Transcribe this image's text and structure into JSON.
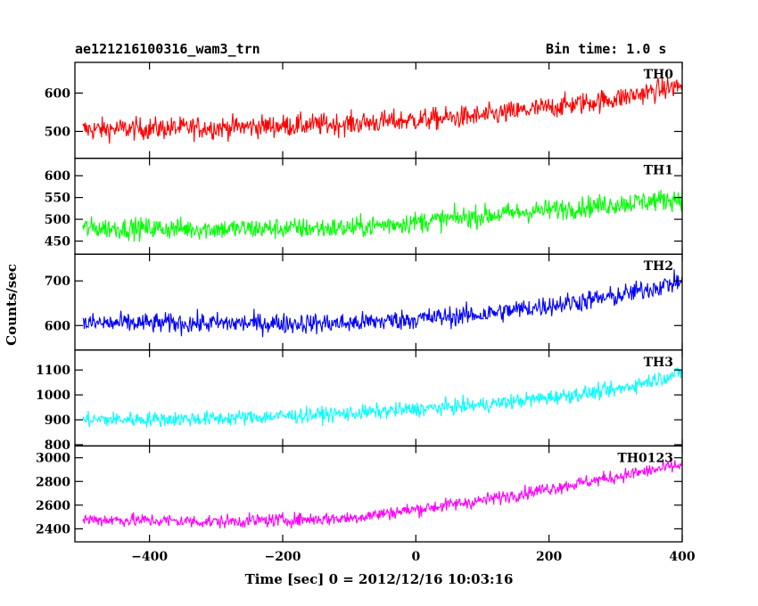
{
  "header": {
    "left_title": "ae121216100316_wam3_trn",
    "right_title": "Bin time: 1.0 s"
  },
  "axes": {
    "xlabel": "Time [sec] 0 = 2012/12/16 10:03:16",
    "ylabel": "Counts/sec"
  },
  "chart_data": {
    "type": "line",
    "x_range": [
      -512,
      400
    ],
    "x_ticks": [
      -400,
      -200,
      0,
      200,
      400
    ],
    "x_tick_labels": [
      "−400",
      "−200",
      "0",
      "200",
      "400"
    ],
    "grid": false,
    "legend": "none",
    "panels": [
      {
        "label": "TH0",
        "color": "#ff0000",
        "ylim": [
          430,
          680
        ],
        "y_ticks": [
          500,
          600
        ],
        "y_tick_labels": [
          "500",
          "600"
        ],
        "trend": [
          [
            -500,
            505
          ],
          [
            -300,
            510
          ],
          [
            -100,
            520
          ],
          [
            100,
            540
          ],
          [
            300,
            585
          ],
          [
            400,
            620
          ]
        ],
        "noise_amplitude": 38
      },
      {
        "label": "TH1",
        "color": "#00ff00",
        "ylim": [
          420,
          640
        ],
        "y_ticks": [
          450,
          500,
          550,
          600
        ],
        "y_tick_labels": [
          "450",
          "500",
          "550",
          "600"
        ],
        "trend": [
          [
            -500,
            480
          ],
          [
            -300,
            478
          ],
          [
            -100,
            480
          ],
          [
            100,
            508
          ],
          [
            300,
            535
          ],
          [
            400,
            548
          ]
        ],
        "noise_amplitude": 32
      },
      {
        "label": "TH2",
        "color": "#0000ff",
        "ylim": [
          545,
          760
        ],
        "y_ticks": [
          600,
          700
        ],
        "y_tick_labels": [
          "600",
          "700"
        ],
        "trend": [
          [
            -500,
            605
          ],
          [
            -300,
            605
          ],
          [
            -100,
            605
          ],
          [
            100,
            625
          ],
          [
            300,
            665
          ],
          [
            400,
            700
          ]
        ],
        "noise_amplitude": 30
      },
      {
        "label": "TH3",
        "color": "#00ffff",
        "ylim": [
          795,
          1180
        ],
        "y_ticks": [
          800,
          900,
          1000,
          1100
        ],
        "y_tick_labels": [
          "800",
          "900",
          "1000",
          "1100"
        ],
        "trend": [
          [
            -500,
            900
          ],
          [
            -300,
            905
          ],
          [
            -100,
            925
          ],
          [
            100,
            960
          ],
          [
            300,
            1020
          ],
          [
            400,
            1090
          ]
        ],
        "noise_amplitude": 40
      },
      {
        "label": "TH0123",
        "color": "#ff00ff",
        "ylim": [
          2290,
          3100
        ],
        "y_ticks": [
          2400,
          2600,
          2800,
          3000
        ],
        "y_tick_labels": [
          "2400",
          "2600",
          "2800",
          "3000"
        ],
        "trend": [
          [
            -500,
            2480
          ],
          [
            -300,
            2460
          ],
          [
            -100,
            2490
          ],
          [
            100,
            2640
          ],
          [
            300,
            2840
          ],
          [
            400,
            2940
          ]
        ],
        "noise_amplitude": 75
      }
    ]
  }
}
